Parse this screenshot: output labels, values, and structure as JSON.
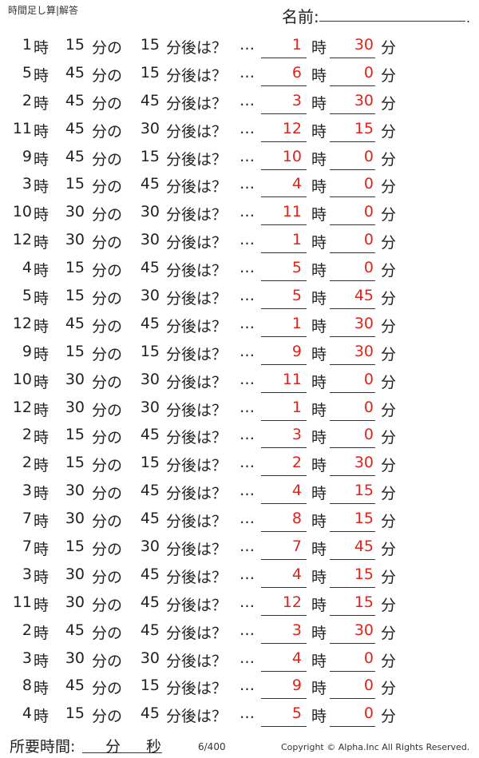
{
  "header": {
    "title": "時間足し算|解答",
    "name_label": "名前:",
    "name_end": "."
  },
  "labels": {
    "hour": "時",
    "minute_no": "分の",
    "after": "分後は？",
    "dots": "…",
    "minute": "分"
  },
  "problems": [
    {
      "h": "1",
      "m": "15",
      "add": "15",
      "ans_h": "1",
      "ans_m": "30"
    },
    {
      "h": "5",
      "m": "45",
      "add": "15",
      "ans_h": "6",
      "ans_m": "0"
    },
    {
      "h": "2",
      "m": "45",
      "add": "45",
      "ans_h": "3",
      "ans_m": "30"
    },
    {
      "h": "11",
      "m": "45",
      "add": "30",
      "ans_h": "12",
      "ans_m": "15"
    },
    {
      "h": "9",
      "m": "45",
      "add": "15",
      "ans_h": "10",
      "ans_m": "0"
    },
    {
      "h": "3",
      "m": "15",
      "add": "45",
      "ans_h": "4",
      "ans_m": "0"
    },
    {
      "h": "10",
      "m": "30",
      "add": "30",
      "ans_h": "11",
      "ans_m": "0"
    },
    {
      "h": "12",
      "m": "30",
      "add": "30",
      "ans_h": "1",
      "ans_m": "0"
    },
    {
      "h": "4",
      "m": "15",
      "add": "45",
      "ans_h": "5",
      "ans_m": "0"
    },
    {
      "h": "5",
      "m": "15",
      "add": "30",
      "ans_h": "5",
      "ans_m": "45"
    },
    {
      "h": "12",
      "m": "45",
      "add": "45",
      "ans_h": "1",
      "ans_m": "30"
    },
    {
      "h": "9",
      "m": "15",
      "add": "15",
      "ans_h": "9",
      "ans_m": "30"
    },
    {
      "h": "10",
      "m": "30",
      "add": "30",
      "ans_h": "11",
      "ans_m": "0"
    },
    {
      "h": "12",
      "m": "30",
      "add": "30",
      "ans_h": "1",
      "ans_m": "0"
    },
    {
      "h": "2",
      "m": "15",
      "add": "45",
      "ans_h": "3",
      "ans_m": "0"
    },
    {
      "h": "2",
      "m": "15",
      "add": "15",
      "ans_h": "2",
      "ans_m": "30"
    },
    {
      "h": "3",
      "m": "30",
      "add": "45",
      "ans_h": "4",
      "ans_m": "15"
    },
    {
      "h": "7",
      "m": "30",
      "add": "45",
      "ans_h": "8",
      "ans_m": "15"
    },
    {
      "h": "7",
      "m": "15",
      "add": "30",
      "ans_h": "7",
      "ans_m": "45"
    },
    {
      "h": "3",
      "m": "30",
      "add": "45",
      "ans_h": "4",
      "ans_m": "15"
    },
    {
      "h": "11",
      "m": "30",
      "add": "45",
      "ans_h": "12",
      "ans_m": "15"
    },
    {
      "h": "2",
      "m": "45",
      "add": "45",
      "ans_h": "3",
      "ans_m": "30"
    },
    {
      "h": "3",
      "m": "30",
      "add": "30",
      "ans_h": "4",
      "ans_m": "0"
    },
    {
      "h": "8",
      "m": "45",
      "add": "15",
      "ans_h": "9",
      "ans_m": "0"
    },
    {
      "h": "4",
      "m": "15",
      "add": "45",
      "ans_h": "5",
      "ans_m": "0"
    }
  ],
  "footer": {
    "time_label": "所要時間:",
    "minutes_label": "分",
    "seconds_label": "秒",
    "page": "6/400",
    "copyright": "Copyright ©  Alpha.Inc All Rights Reserved."
  },
  "colors": {
    "answer": "#e2231a"
  }
}
